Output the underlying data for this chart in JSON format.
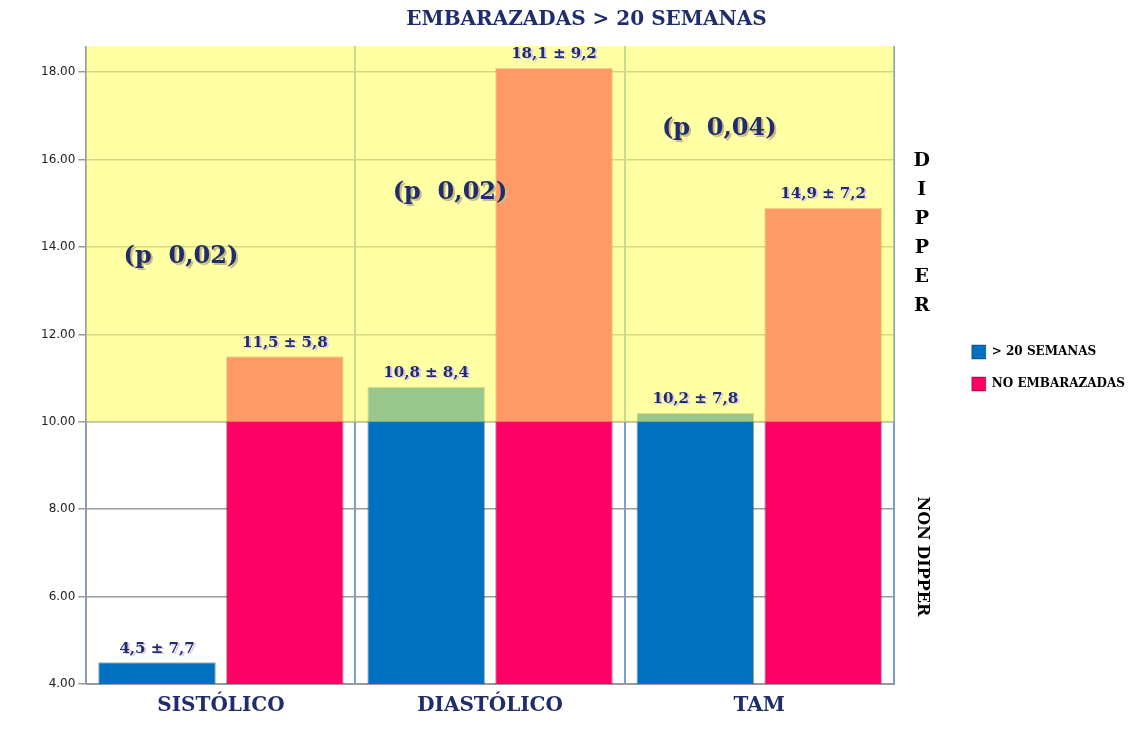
{
  "chart_data": {
    "type": "bar",
    "title": "EMBARAZADAS > 20 SEMANAS",
    "categories": [
      "SISTÓLICO",
      "DIASTÓLICO",
      "TAM"
    ],
    "series": [
      {
        "name": "> 20 SEMANAS",
        "color": "#0070c0",
        "values": [
          4.5,
          10.8,
          10.2
        ],
        "value_labels": [
          "4,5 ± 7,7",
          "10,8 ± 8,4",
          "10,2 ± 7,8"
        ]
      },
      {
        "name": "NO EMBARAZADAS",
        "color": "#ff0066",
        "values": [
          11.5,
          18.1,
          14.9
        ],
        "value_labels": [
          "11,5 ± 5,8",
          "18,1 ± 9,2",
          "14,9 ± 7,2"
        ]
      }
    ],
    "ylim": [
      4,
      18.6
    ],
    "yticks": [
      {
        "value": 4,
        "label": "4.00"
      },
      {
        "value": 6,
        "label": "6.00"
      },
      {
        "value": 8,
        "label": "8.00"
      },
      {
        "value": 10,
        "label": "10.00"
      },
      {
        "value": 12,
        "label": "12.00"
      },
      {
        "value": 14,
        "label": "14.00"
      },
      {
        "value": 16,
        "label": "16.00"
      },
      {
        "value": 18,
        "label": "18.00"
      }
    ],
    "bands": [
      {
        "axis": "y",
        "from": 10,
        "to": 18.6,
        "label": "DIPPER",
        "color": "#ffff66"
      }
    ],
    "annotations": [
      "(p  0,02)",
      "(p  0,02)",
      "(p  0,04)",
      "NON DIPPER"
    ],
    "grid": true,
    "legend": "right"
  }
}
